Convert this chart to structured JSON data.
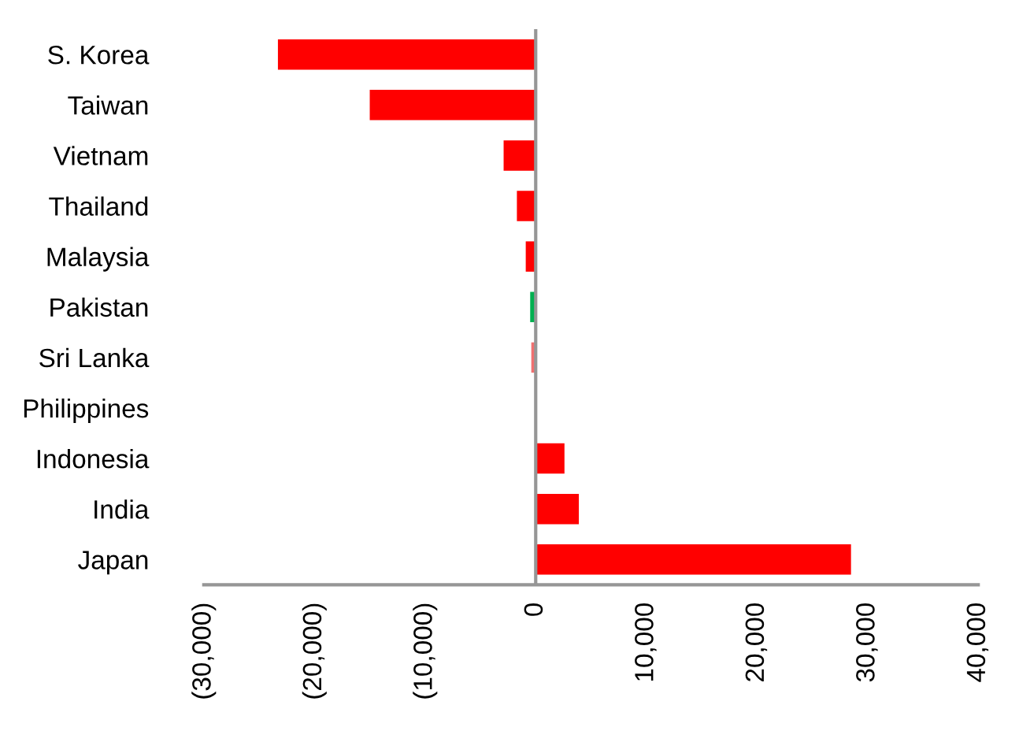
{
  "chart_data": {
    "type": "bar",
    "orientation": "horizontal",
    "categories": [
      "S. Korea",
      "Taiwan",
      "Vietnam",
      "Thailand",
      "Malaysia",
      "Pakistan",
      "Sri Lanka",
      "Philippines",
      "Indonesia",
      "India",
      "Japan"
    ],
    "values": [
      -23300,
      -15000,
      -2900,
      -1700,
      -900,
      -500,
      -400,
      0,
      2600,
      3900,
      28500
    ],
    "colors": [
      "#ff0000",
      "#ff0000",
      "#ff0000",
      "#ff0000",
      "#ff0000",
      "#00b050",
      "#f07070",
      "#ff0000",
      "#ff0000",
      "#ff0000",
      "#ff0000"
    ],
    "xlim": [
      -30000,
      40000
    ],
    "xticks": [
      {
        "value": -30000,
        "label": "(30,000)"
      },
      {
        "value": -20000,
        "label": "(20,000)"
      },
      {
        "value": -10000,
        "label": "(10,000)"
      },
      0,
      {
        "value": 10000,
        "label": "10,000"
      },
      {
        "value": 20000,
        "label": "20,000"
      },
      {
        "value": 30000,
        "label": "30,000"
      },
      {
        "value": 40000,
        "label": "40,000"
      }
    ],
    "ref_lines": [
      {
        "axis": "x",
        "value": 0,
        "color": "#969696"
      }
    ],
    "grid": false,
    "legend": false
  }
}
